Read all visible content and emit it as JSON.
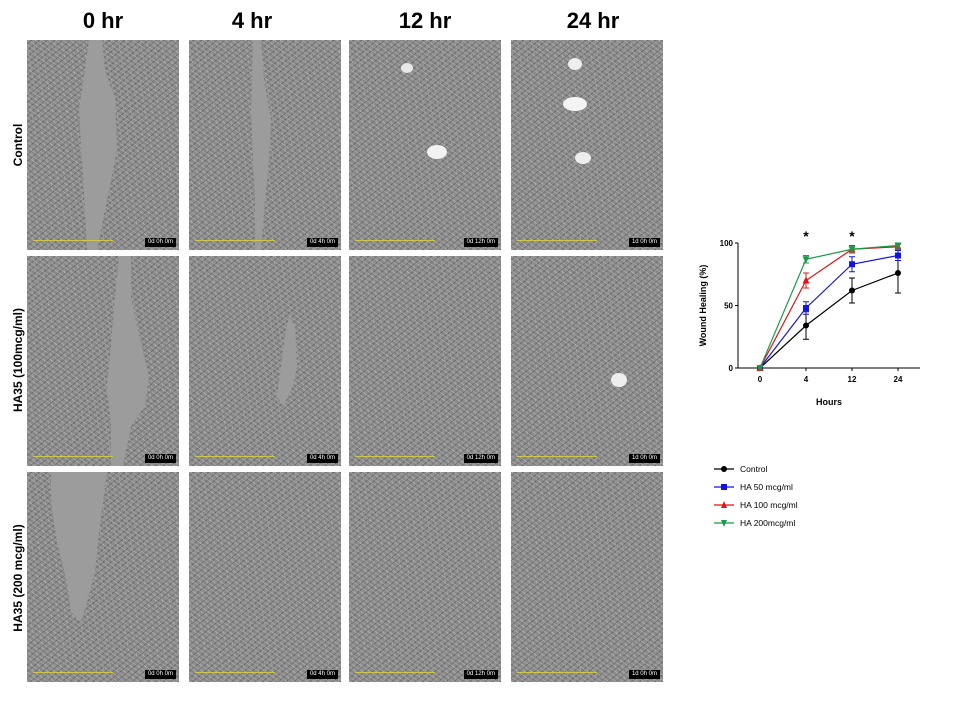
{
  "columns": [
    "0 hr",
    "4 hr",
    "12 hr",
    "24 hr"
  ],
  "rows": [
    "Control",
    "HA35 (100mcg/ml)",
    "HA35 (200 mcg/ml)"
  ],
  "timestamps": [
    [
      "0d 0h 0m",
      "0d 4h 0m",
      "0d 12h 0m",
      "1d 0h 0m"
    ],
    [
      "0d 0h 0m",
      "0d 4h 0m",
      "0d 12h 0m",
      "1d 0h 0m"
    ],
    [
      "0d 0h 0m",
      "0d 4h 0m",
      "0d 12h 0m",
      "1d 0h 0m"
    ]
  ],
  "chart_data": {
    "type": "line",
    "xlabel": "Hours",
    "ylabel": "Wound Healing (%)",
    "categories": [
      "0",
      "4",
      "12",
      "24"
    ],
    "ylim": [
      0,
      100
    ],
    "yticks": [
      "0",
      "50",
      "100"
    ],
    "annotations": [
      {
        "text": "*",
        "x": "4"
      },
      {
        "text": "*",
        "x": "12"
      }
    ],
    "series": [
      {
        "name": "Control",
        "color": "#000000",
        "marker": "circle",
        "values": [
          0,
          34,
          62,
          76
        ],
        "errors": [
          0,
          11,
          10,
          16
        ]
      },
      {
        "name": "HA 50 mcg/ml",
        "color": "#1414e0",
        "marker": "square",
        "values": [
          0,
          48,
          83,
          90
        ],
        "errors": [
          0,
          5,
          6,
          4
        ]
      },
      {
        "name": "HA 100 mcg/ml",
        "color": "#e01414",
        "marker": "triangle-up",
        "values": [
          0,
          70,
          95,
          97
        ],
        "errors": [
          0,
          6,
          3,
          2
        ]
      },
      {
        "name": "HA 200mcg/ml",
        "color": "#1a9a4a",
        "marker": "triangle-down",
        "values": [
          0,
          87,
          95,
          98
        ],
        "errors": [
          0,
          3,
          2,
          2
        ]
      }
    ],
    "legend": "bottom-right"
  }
}
